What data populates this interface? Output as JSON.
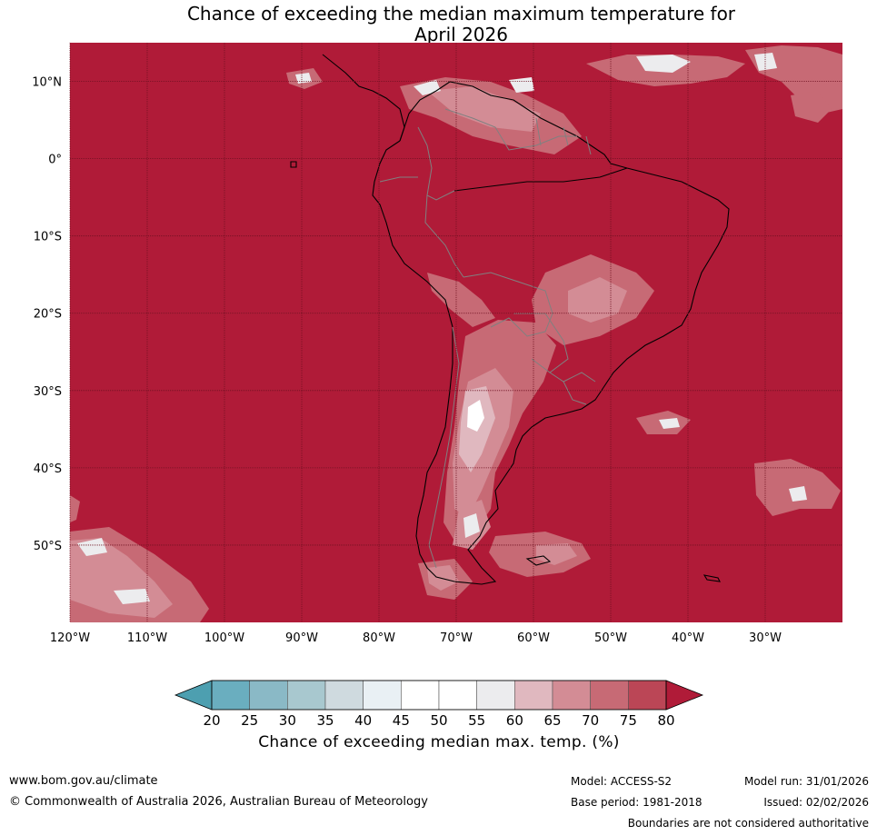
{
  "title": {
    "line1": "Chance of exceeding the median maximum temperature for",
    "line2": "April 2026"
  },
  "map": {
    "lat_labels": [
      "10°N",
      "0°",
      "10°S",
      "20°S",
      "30°S",
      "40°S",
      "50°S"
    ],
    "lat_values": [
      10,
      0,
      -10,
      -20,
      -30,
      -40,
      -50
    ],
    "lon_labels": [
      "120°W",
      "110°W",
      "100°W",
      "90°W",
      "80°W",
      "70°W",
      "60°W",
      "50°W",
      "40°W",
      "30°W"
    ],
    "lon_values": [
      -120,
      -110,
      -100,
      -90,
      -80,
      -70,
      -60,
      -50,
      -40,
      -30
    ],
    "lon_range": [
      -120,
      -20
    ],
    "lat_range": [
      -60,
      15
    ],
    "colors": {
      "ocean_background": "#b01b38",
      "coastline": "#000000",
      "boundaries": "#808080",
      "gridlines": "#6e1020"
    }
  },
  "colorbar": {
    "ticks": [
      "20",
      "25",
      "30",
      "35",
      "40",
      "45",
      "50",
      "55",
      "60",
      "65",
      "70",
      "75",
      "80"
    ],
    "colors": [
      "#4d9fb0",
      "#6aaebf",
      "#8ab9c6",
      "#a8c8cf",
      "#cfdadf",
      "#e9f0f4",
      "#ffffff",
      "#ffffff",
      "#ececee",
      "#e0b8bf",
      "#d38c95",
      "#c76a75",
      "#bb4656",
      "#b01b38"
    ],
    "label": "Chance of exceeding median max. temp. (%)"
  },
  "footer": {
    "url": "www.bom.gov.au/climate",
    "copyright": "© Commonwealth of Australia 2026, Australian Bureau of Meteorology",
    "model": "Model: ACCESS-S2",
    "base_period": "Base period: 1981-2018",
    "model_run": "Model run: 31/01/2026",
    "issued": "Issued: 02/02/2026",
    "disclaimer": "Boundaries are not considered authoritative"
  }
}
